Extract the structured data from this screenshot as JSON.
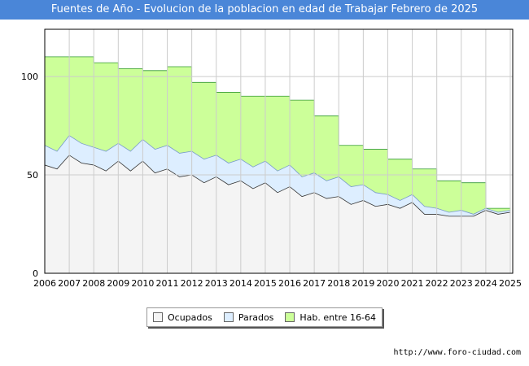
{
  "chart_data": {
    "type": "area",
    "title": "Fuentes de Año - Evolucion de la poblacion en edad de Trabajar Febrero de 2025",
    "xlabel": "",
    "ylabel": "",
    "xlim": [
      2006,
      2025.1
    ],
    "ylim": [
      0,
      124
    ],
    "yticks": [
      0,
      50,
      100
    ],
    "xticks": [
      2006,
      2007,
      2008,
      2009,
      2010,
      2011,
      2012,
      2013,
      2014,
      2015,
      2016,
      2017,
      2018,
      2019,
      2020,
      2021,
      2022,
      2023,
      2024,
      2025
    ],
    "grid": true,
    "legend_position": "bottom",
    "series": [
      {
        "name": "Hab. entre 16-64",
        "color": "#ccff99",
        "edge_color": "#339933",
        "x": [
          2006,
          2007,
          2008,
          2009,
          2010,
          2011,
          2012,
          2013,
          2014,
          2015,
          2016,
          2017,
          2018,
          2019,
          2020,
          2021,
          2022,
          2023,
          2024
        ],
        "values": [
          110,
          110,
          107,
          104,
          103,
          105,
          97,
          92,
          90,
          90,
          88,
          80,
          65,
          63,
          58,
          53,
          47,
          46,
          33
        ]
      },
      {
        "name": "Parados",
        "color": "#ddeeff",
        "edge_color": "#7799cc",
        "x": [
          2006,
          2006.5,
          2007,
          2007.5,
          2008,
          2008.5,
          2009,
          2009.5,
          2010,
          2010.5,
          2011,
          2011.5,
          2012,
          2012.5,
          2013,
          2013.5,
          2014,
          2014.5,
          2015,
          2015.5,
          2016,
          2016.5,
          2017,
          2017.5,
          2018,
          2018.5,
          2019,
          2019.5,
          2020,
          2020.5,
          2021,
          2021.5,
          2022,
          2022.5,
          2023,
          2023.5,
          2024,
          2024.5,
          2025
        ],
        "values": [
          65,
          62,
          70,
          66,
          64,
          62,
          66,
          62,
          68,
          63,
          65,
          61,
          62,
          58,
          60,
          56,
          58,
          54,
          57,
          52,
          55,
          49,
          51,
          47,
          49,
          44,
          45,
          41,
          40,
          37,
          40,
          34,
          33,
          31,
          32,
          30,
          33,
          31,
          32
        ]
      },
      {
        "name": "Ocupados",
        "color": "#f4f4f4",
        "edge_color": "#333333",
        "x": [
          2006,
          2006.5,
          2007,
          2007.5,
          2008,
          2008.5,
          2009,
          2009.5,
          2010,
          2010.5,
          2011,
          2011.5,
          2012,
          2012.5,
          2013,
          2013.5,
          2014,
          2014.5,
          2015,
          2015.5,
          2016,
          2016.5,
          2017,
          2017.5,
          2018,
          2018.5,
          2019,
          2019.5,
          2020,
          2020.5,
          2021,
          2021.5,
          2022,
          2022.5,
          2023,
          2023.5,
          2024,
          2024.5,
          2025
        ],
        "values": [
          55,
          53,
          60,
          56,
          55,
          52,
          57,
          52,
          57,
          51,
          53,
          49,
          50,
          46,
          49,
          45,
          47,
          43,
          46,
          41,
          44,
          39,
          41,
          38,
          39,
          35,
          37,
          34,
          35,
          33,
          36,
          30,
          30,
          29,
          29,
          29,
          32,
          30,
          31
        ]
      }
    ]
  },
  "legend": {
    "ocupados": "Ocupados",
    "parados": "Parados",
    "habitantes": "Hab. entre 16-64"
  },
  "colors": {
    "title_bg": "#4a86d8",
    "ocupados": "#f4f4f4",
    "parados": "#ddeeff",
    "habitantes": "#ccff99"
  },
  "footer": {
    "url": "http://www.foro-ciudad.com"
  }
}
